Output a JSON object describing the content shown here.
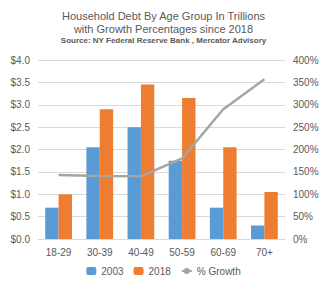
{
  "chart_data": {
    "type": "bar",
    "title": "Household Debt By Age Group In Trillions\nwith Growth Percentages since 2018",
    "subtitle": "Source: NY Federal Reserve Bank , Mercator Advisory",
    "categories": [
      "18-29",
      "30-39",
      "40-49",
      "50-59",
      "60-69",
      "70+"
    ],
    "series": [
      {
        "name": "2003",
        "type": "bar",
        "color": "#5b9bd5",
        "values": [
          0.7,
          2.05,
          2.5,
          1.75,
          0.7,
          0.3
        ]
      },
      {
        "name": "2018",
        "type": "bar",
        "color": "#ed7d31",
        "values": [
          1.0,
          2.9,
          3.45,
          3.15,
          2.05,
          1.05
        ]
      },
      {
        "name": "% Growth",
        "type": "line",
        "color": "#a5a5a5",
        "axis": "y2",
        "values": [
          143,
          141,
          140,
          180,
          290,
          357
        ]
      }
    ],
    "ylim": [
      0,
      4
    ],
    "yticks": [
      {
        "value": 0,
        "label": "$0.0"
      },
      {
        "value": 0.5,
        "label": "$0.5"
      },
      {
        "value": 1,
        "label": "$1.0"
      },
      {
        "value": 1.5,
        "label": "$1.5"
      },
      {
        "value": 2,
        "label": "$2.0"
      },
      {
        "value": 2.5,
        "label": "$2.5"
      },
      {
        "value": 3,
        "label": "$3.0"
      },
      {
        "value": 3.5,
        "label": "$3.5"
      },
      {
        "value": 4,
        "label": "$4.0"
      }
    ],
    "y2lim": [
      0,
      400
    ],
    "y2ticks": [
      {
        "value": 0,
        "label": "0%"
      },
      {
        "value": 50,
        "label": "50%"
      },
      {
        "value": 100,
        "label": "100%"
      },
      {
        "value": 150,
        "label": "150%"
      },
      {
        "value": 200,
        "label": "200%"
      },
      {
        "value": 250,
        "label": "250%"
      },
      {
        "value": 300,
        "label": "300%"
      },
      {
        "value": 350,
        "label": "350%"
      },
      {
        "value": 400,
        "label": "400%"
      }
    ],
    "grid": true,
    "legend": "bottom"
  }
}
